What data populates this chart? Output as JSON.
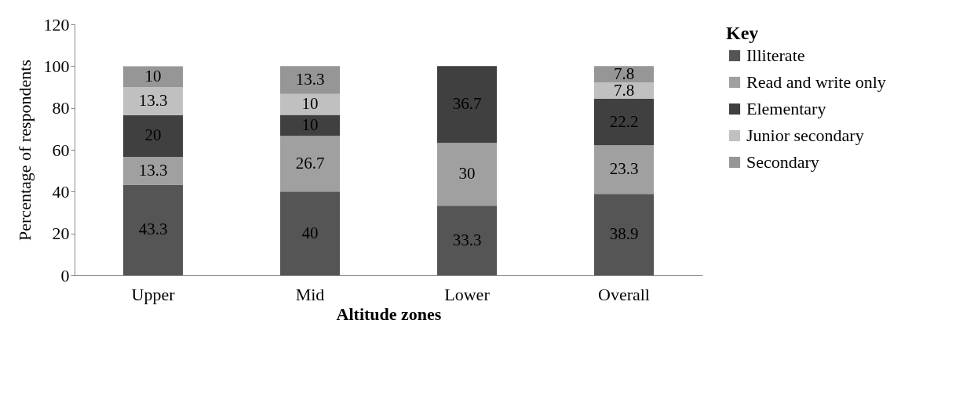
{
  "chart_data": {
    "type": "bar",
    "stacked": true,
    "xlabel": "Altitude zones",
    "ylabel": "Percentage of respondents",
    "legend_title": "Key",
    "legend": "right",
    "grid": false,
    "data_labels": true,
    "categories": [
      "Upper",
      "Mid",
      "Lower",
      "Overall"
    ],
    "ylim": [
      0,
      120
    ],
    "yticks": [
      0,
      20,
      40,
      60,
      80,
      100,
      120
    ],
    "series": [
      {
        "name": "Illiterate",
        "color": "#555555",
        "values": [
          43.3,
          40,
          33.3,
          38.9
        ]
      },
      {
        "name": "Read and write only",
        "color": "#a0a0a0",
        "values": [
          13.3,
          26.7,
          30,
          23.3
        ]
      },
      {
        "name": "Elementary",
        "color": "#404040",
        "values": [
          20,
          10,
          36.7,
          22.2
        ]
      },
      {
        "name": "Junior secondary",
        "color": "#c0c0c0",
        "values": [
          13.3,
          10,
          null,
          7.8
        ]
      },
      {
        "name": "Secondary",
        "color": "#969696",
        "values": [
          10,
          13.3,
          null,
          7.8
        ]
      }
    ]
  }
}
